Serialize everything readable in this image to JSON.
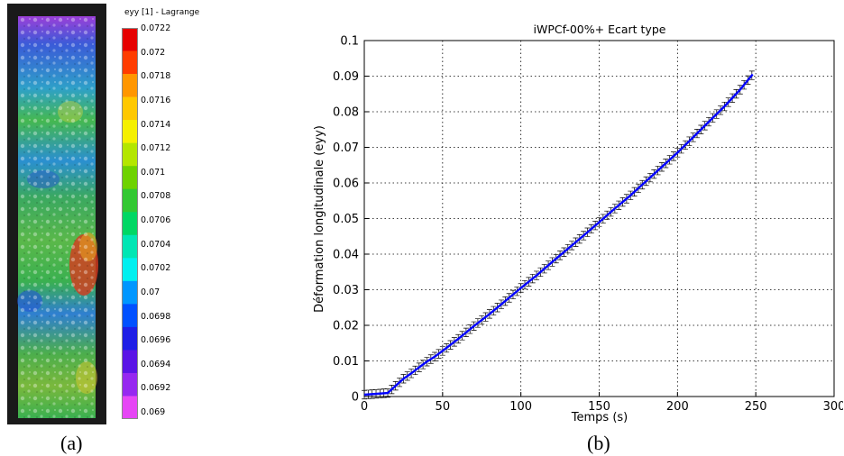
{
  "panel_a": {
    "caption": "(a)",
    "colorbar_title": "eyy [1] - Lagrange",
    "colorbar_ticks": [
      "0.0722",
      "0.072",
      "0.0718",
      "0.0716",
      "0.0714",
      "0.0712",
      "0.071",
      "0.0708",
      "0.0706",
      "0.0704",
      "0.0702",
      "0.07",
      "0.0698",
      "0.0696",
      "0.0694",
      "0.0692",
      "0.069"
    ],
    "colorbar_colors": [
      "#e60000",
      "#ff3c00",
      "#ff9600",
      "#ffc800",
      "#f5f000",
      "#b4e600",
      "#6ed200",
      "#32c832",
      "#00d764",
      "#00e6b4",
      "#00f0f0",
      "#0096ff",
      "#0050ff",
      "#1e1ee6",
      "#5a14e6",
      "#9628f0",
      "#e646f5"
    ]
  },
  "panel_b": {
    "caption": "(b)"
  },
  "chart_data": {
    "type": "line",
    "title": "iWPCf-00%+ Ecart type",
    "xlabel": "Temps  (s)",
    "ylabel": "Déformation longitudinale (eyy)",
    "xlim": [
      0,
      300
    ],
    "ylim": [
      0,
      0.1
    ],
    "xticks": [
      "0",
      "50",
      "100",
      "150",
      "200",
      "250",
      "300"
    ],
    "yticks": [
      "0",
      "0.01",
      "0.02",
      "0.03",
      "0.04",
      "0.05",
      "0.06",
      "0.07",
      "0.08",
      "0.09",
      "0.1"
    ],
    "grid": true,
    "line_color": "#0000ff",
    "errorbar_color": "#000000",
    "error_half_width": 0.0012,
    "x": [
      0,
      15,
      20,
      25,
      30,
      35,
      40,
      45,
      50,
      60,
      70,
      80,
      90,
      100,
      110,
      120,
      130,
      140,
      150,
      160,
      170,
      180,
      190,
      200,
      210,
      220,
      230,
      240,
      248
    ],
    "y": [
      0.0005,
      0.001,
      0.003,
      0.005,
      0.0065,
      0.0082,
      0.0098,
      0.0112,
      0.0128,
      0.0162,
      0.0198,
      0.0232,
      0.0268,
      0.0305,
      0.034,
      0.0378,
      0.0415,
      0.0452,
      0.049,
      0.0528,
      0.0565,
      0.0605,
      0.0645,
      0.0685,
      0.0728,
      0.0772,
      0.0815,
      0.0862,
      0.0905
    ]
  }
}
